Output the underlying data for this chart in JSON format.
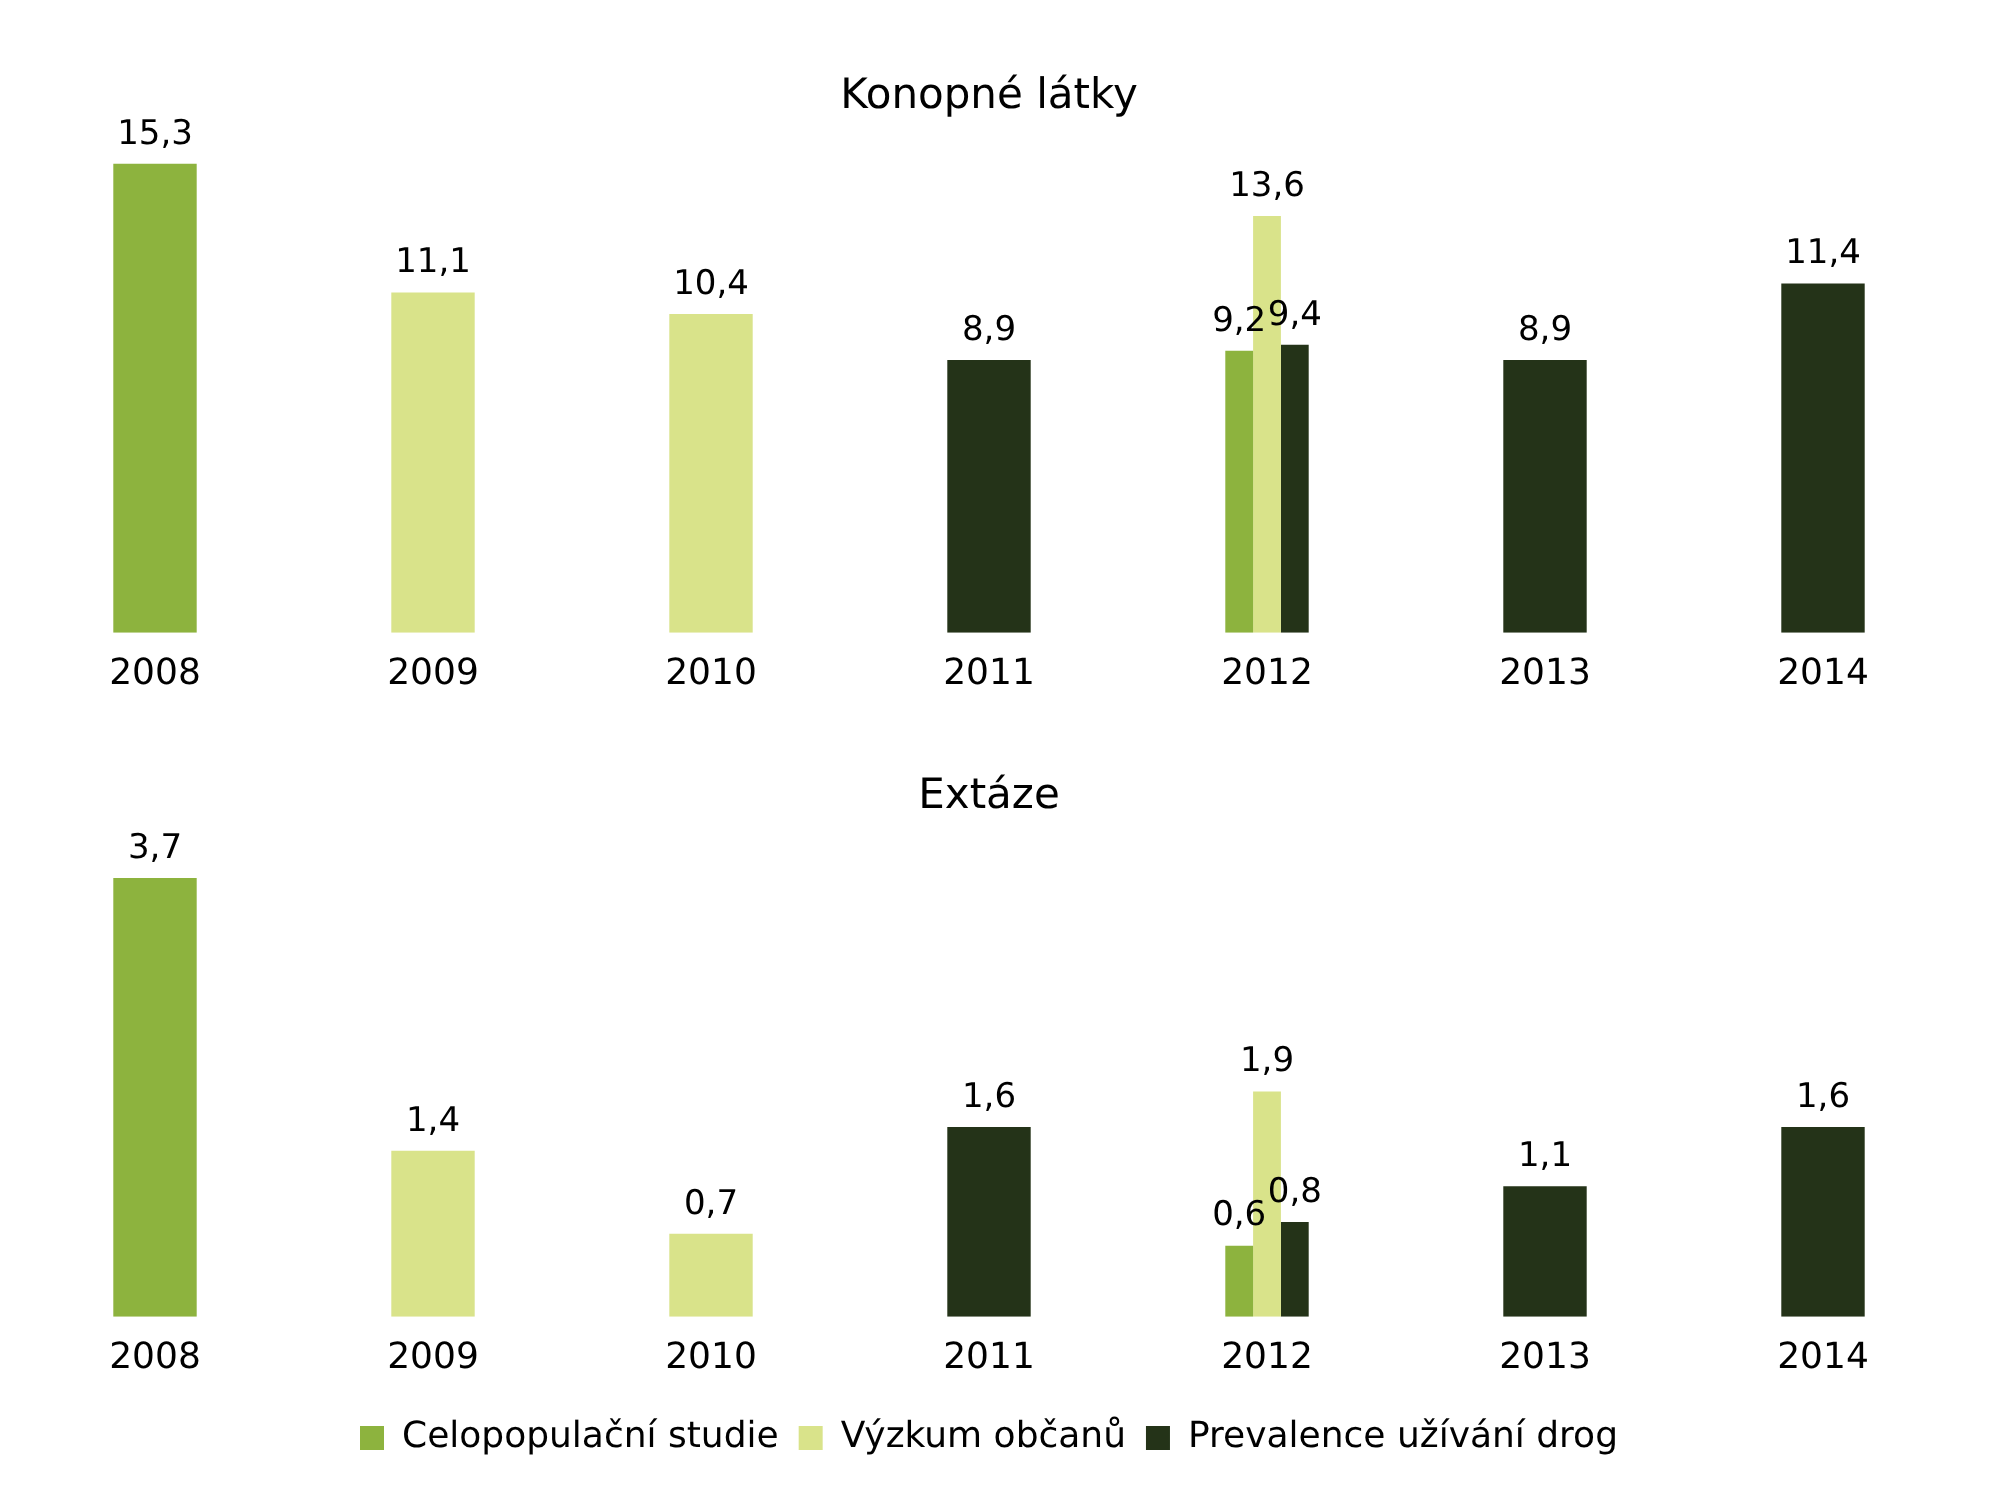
{
  "chart_data": [
    {
      "type": "bar",
      "title": "Konopné látky",
      "categories": [
        "2008",
        "2009",
        "2010",
        "2011",
        "2012",
        "2013",
        "2014"
      ],
      "legend": false,
      "grid": false,
      "tick_labels": "x",
      "series": [
        {
          "color": "#8db33e",
          "values": [
            15.3,
            null,
            null,
            null,
            9.2,
            null,
            null
          ],
          "value_labels": [
            "15,3",
            null,
            null,
            null,
            "9,2",
            null,
            null
          ]
        },
        {
          "color": "#d9e38a",
          "values": [
            null,
            11.1,
            10.4,
            null,
            13.6,
            null,
            null
          ],
          "value_labels": [
            null,
            "11,1",
            "10,4",
            null,
            "13,6",
            null,
            null
          ]
        },
        {
          "color": "#243318",
          "values": [
            null,
            null,
            null,
            8.9,
            9.4,
            8.9,
            11.4
          ],
          "value_labels": [
            null,
            null,
            null,
            "8,9",
            "9,4",
            "8,9",
            "11,4"
          ]
        }
      ]
    },
    {
      "type": "bar",
      "title": "Extáze",
      "categories": [
        "2008",
        "2009",
        "2010",
        "2011",
        "2012",
        "2013",
        "2014"
      ],
      "legend": "bottom",
      "grid": false,
      "tick_labels": "x",
      "series": [
        {
          "name": "Celopopulační studie",
          "color": "#8db33e",
          "values": [
            3.7,
            null,
            null,
            null,
            0.6,
            null,
            null
          ],
          "value_labels": [
            "3,7",
            null,
            null,
            null,
            "0,6",
            null,
            null
          ]
        },
        {
          "name": "Výzkum občanů",
          "color": "#d9e38a",
          "values": [
            null,
            1.4,
            0.7,
            null,
            1.9,
            null,
            null
          ],
          "value_labels": [
            null,
            "1,4",
            "0,7",
            null,
            "1,9",
            null,
            null
          ]
        },
        {
          "name": "Prevalence užívání drog",
          "color": "#243318",
          "values": [
            null,
            null,
            null,
            1.6,
            0.8,
            1.1,
            1.6
          ],
          "value_labels": [
            null,
            null,
            null,
            "1,6",
            "0,8",
            "1,1",
            "1,6"
          ]
        }
      ]
    }
  ]
}
